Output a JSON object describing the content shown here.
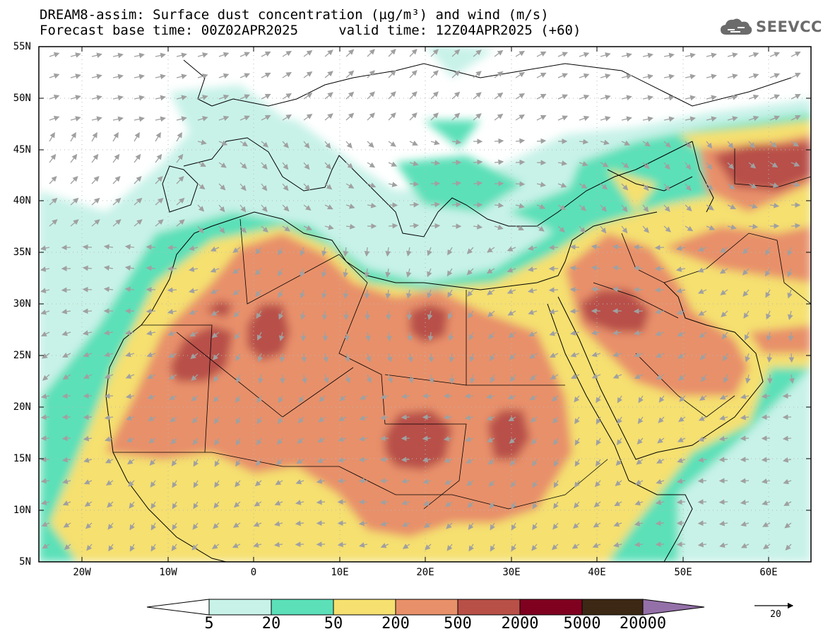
{
  "title": {
    "line1": "DREAM8-assim: Surface dust concentration (µg/m³) and wind (m/s)",
    "line2": "Forecast base time: 00Z02APR2025     valid time: 12Z04APR2025 (+60)"
  },
  "logo": {
    "text": "SEEVCCC",
    "icon": "cloud-icon"
  },
  "axes": {
    "lat_labels": [
      "55N",
      "50N",
      "45N",
      "40N",
      "35N",
      "30N",
      "25N",
      "20N",
      "15N",
      "10N",
      "5N"
    ],
    "lon_labels": [
      "20W",
      "10W",
      "0",
      "10E",
      "20E",
      "30E",
      "40E",
      "50E",
      "60E"
    ]
  },
  "colorbar": {
    "labels": [
      "5",
      "20",
      "50",
      "200",
      "500",
      "2000",
      "5000",
      "20000"
    ],
    "colors": [
      "#c8f2e8",
      "#5ce0b8",
      "#f5e070",
      "#e8906a",
      "#b85048",
      "#800020",
      "#3c2814",
      "#9470a8"
    ]
  },
  "wind_reference": {
    "label": "20"
  },
  "colors": {
    "ocean": "#ffffff",
    "border": "#000000",
    "wind_arrow": "#a0a0a0",
    "grid": "#b8b8b8"
  }
}
